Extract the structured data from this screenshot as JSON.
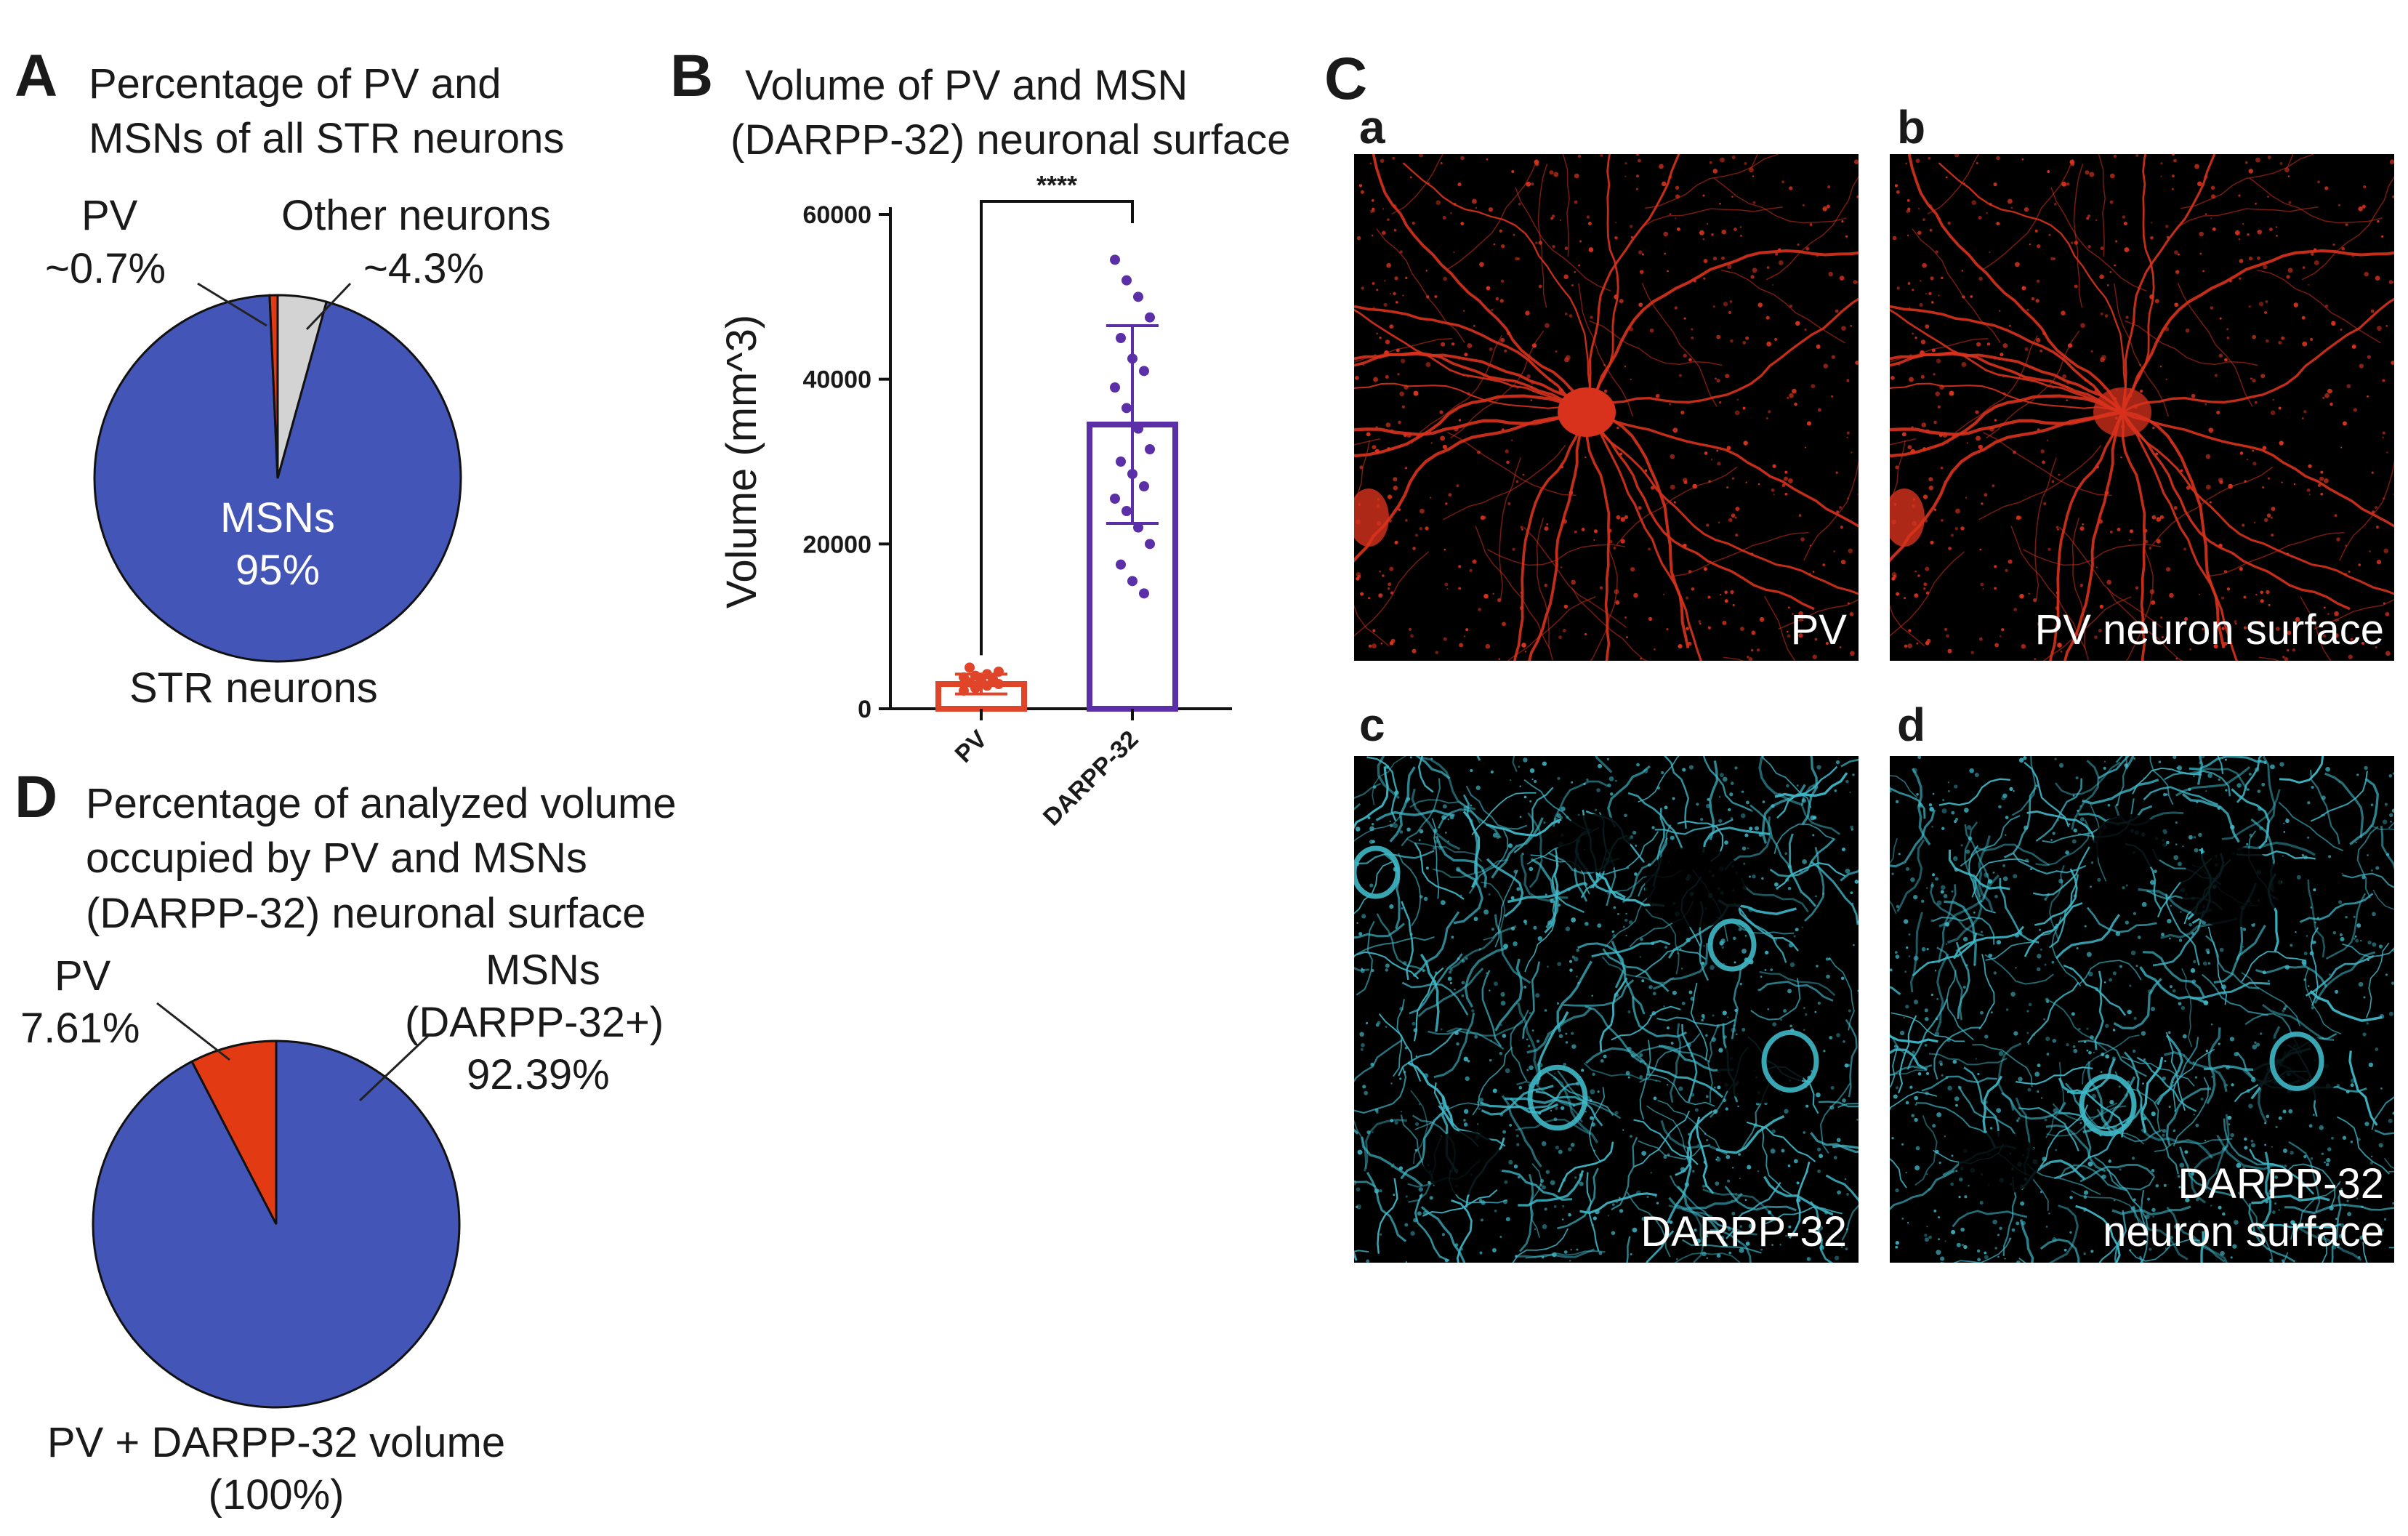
{
  "panelA": {
    "letter": "A",
    "title_line1": "Percentage of PV and",
    "title_line2": "MSNs of all STR neurons",
    "pv_name": "PV",
    "pv_value": "~0.7%",
    "other_name": "Other neurons",
    "other_value": "~4.3%",
    "msn_name": "MSNs",
    "msn_value": "95%",
    "caption": "STR neurons"
  },
  "panelB": {
    "letter": "B",
    "title_line1": "Volume of PV and MSN",
    "title_line2": "(DARPP-32) neuronal surface",
    "significance": "****"
  },
  "panelC": {
    "letter": "C",
    "images": [
      {
        "letter": "a",
        "label_line1": "PV",
        "label_line2": ""
      },
      {
        "letter": "b",
        "label_line1": "PV neuron surface",
        "label_line2": ""
      },
      {
        "letter": "c",
        "label_line1": "DARPP-32",
        "label_line2": ""
      },
      {
        "letter": "d",
        "label_line1": "DARPP-32",
        "label_line2": "neuron surface"
      }
    ]
  },
  "panelD": {
    "letter": "D",
    "title_line1": "Percentage of analyzed volume",
    "title_line2": "occupied by PV and MSNs",
    "title_line3": "(DARPP-32) neuronal surface",
    "pv_name": "PV",
    "pv_value": "7.61%",
    "msn_name": "MSNs",
    "msn_name2": "(DARPP-32+)",
    "msn_value": "92.39%",
    "caption_line1": "PV + DARPP-32 volume",
    "caption_line2": "(100%)"
  },
  "colors": {
    "msn_blue": "#4356b8",
    "pv_red": "#e23a12",
    "other_gray": "#d3d3d3",
    "bar_purple": "#5a2fa8",
    "pv_orange": "#e0452a",
    "micro_red": "#d8321c",
    "micro_cyan": "#3fb8c8"
  },
  "chart_data": [
    {
      "type": "pie",
      "panel": "A",
      "title": "Percentage of PV and MSNs of all STR neurons",
      "slices": [
        {
          "label": "MSNs",
          "value": 95,
          "color": "#4356b8"
        },
        {
          "label": "Other neurons",
          "value": 4.3,
          "color": "#d3d3d3"
        },
        {
          "label": "PV",
          "value": 0.7,
          "color": "#e23a12"
        }
      ],
      "caption": "STR neurons"
    },
    {
      "type": "bar",
      "panel": "B",
      "title": "Volume of PV and MSN (DARPP-32) neuronal surface",
      "ylabel": "Volume (mm^3)",
      "ylim": [
        0,
        60000
      ],
      "yticks": [
        "0",
        "20000",
        "40000",
        "60000"
      ],
      "categories": [
        "PV",
        "DARPP-32"
      ],
      "values": [
        3000,
        34500
      ],
      "errors": [
        1200,
        12000
      ],
      "points": [
        [
          2200,
          2500,
          2800,
          3000,
          3200,
          3400,
          3600,
          3800,
          4000,
          4200,
          4500,
          5000
        ],
        [
          54500,
          52000,
          50000,
          47500,
          45000,
          42500,
          41000,
          39000,
          36500,
          34000,
          31500,
          30000,
          28500,
          27000,
          25500,
          24000,
          22000,
          20000,
          17500,
          15500,
          14000
        ]
      ],
      "significance": "****"
    },
    {
      "type": "pie",
      "panel": "D",
      "title": "Percentage of analyzed volume occupied by PV and MSNs (DARPP-32) neuronal surface",
      "slices": [
        {
          "label": "MSNs (DARPP-32+)",
          "value": 92.39,
          "color": "#4356b8"
        },
        {
          "label": "PV",
          "value": 7.61,
          "color": "#e23a12"
        }
      ],
      "caption": "PV + DARPP-32 volume (100%)"
    }
  ]
}
